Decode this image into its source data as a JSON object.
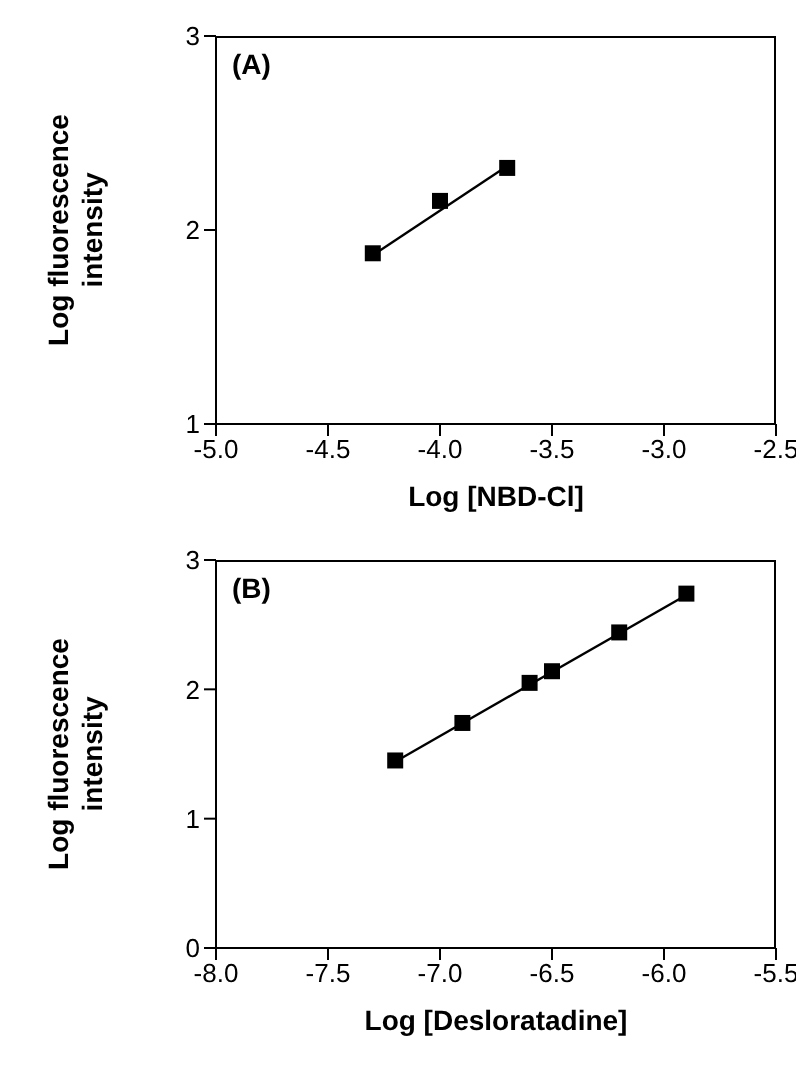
{
  "chart_data": [
    {
      "type": "scatter",
      "annotations": [
        "(A)"
      ],
      "xlabel": "Log [NBD-Cl]",
      "ylabel": "Log fluorescence intensity",
      "xlim": [
        -5.0,
        -2.5
      ],
      "xticks": [
        {
          "value": -5.0,
          "label": "-5.0"
        },
        {
          "value": -4.5,
          "label": "-4.5"
        },
        {
          "value": -4.0,
          "label": "-4.0"
        },
        {
          "value": -3.5,
          "label": "-3.5"
        },
        {
          "value": -3.0,
          "label": "-3.0"
        },
        {
          "value": -2.5,
          "label": "-2.5"
        }
      ],
      "ylim": [
        1,
        3
      ],
      "yticks": [
        1,
        2,
        3
      ],
      "grid": false,
      "legend": false,
      "marker": "square",
      "series": [
        {
          "type": "scatter",
          "color": "#000000",
          "x": [
            -4.3,
            -4.0,
            -3.7
          ],
          "values": [
            1.88,
            2.15,
            2.32
          ]
        },
        {
          "type": "line",
          "color": "#000000",
          "marker": "none",
          "line_style": "solid",
          "x": [
            -4.3,
            -3.7
          ],
          "values": [
            1.87,
            2.33
          ]
        }
      ]
    },
    {
      "type": "scatter",
      "annotations": [
        "(B)"
      ],
      "xlabel": "Log [Desloratadine]",
      "ylabel": "Log fluorescence intensity",
      "xlim": [
        -8.0,
        -5.5
      ],
      "xticks": [
        {
          "value": -8.0,
          "label": "-8.0"
        },
        {
          "value": -7.5,
          "label": "-7.5"
        },
        {
          "value": -7.0,
          "label": "-7.0"
        },
        {
          "value": -6.5,
          "label": "-6.5"
        },
        {
          "value": -6.0,
          "label": "-6.0"
        },
        {
          "value": -5.5,
          "label": "-5.5"
        }
      ],
      "ylim": [
        0,
        3
      ],
      "yticks": [
        0,
        1,
        2,
        3
      ],
      "grid": false,
      "legend": false,
      "marker": "square",
      "series": [
        {
          "type": "scatter",
          "color": "#000000",
          "x": [
            -7.2,
            -6.9,
            -6.6,
            -6.5,
            -6.2,
            -5.9
          ],
          "values": [
            1.45,
            1.74,
            2.05,
            2.14,
            2.44,
            2.74
          ]
        },
        {
          "type": "line",
          "color": "#000000",
          "marker": "none",
          "line_style": "solid",
          "x": [
            -7.2,
            -5.9
          ],
          "values": [
            1.44,
            2.73
          ]
        }
      ]
    }
  ]
}
